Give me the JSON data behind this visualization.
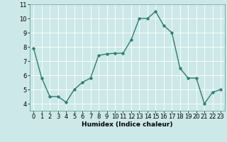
{
  "x": [
    0,
    1,
    2,
    3,
    4,
    5,
    6,
    7,
    8,
    9,
    10,
    11,
    12,
    13,
    14,
    15,
    16,
    17,
    18,
    19,
    20,
    21,
    22,
    23
  ],
  "y": [
    7.9,
    5.8,
    4.5,
    4.5,
    4.1,
    5.0,
    5.5,
    5.8,
    7.4,
    7.5,
    7.55,
    7.55,
    8.5,
    10.0,
    10.0,
    10.5,
    9.5,
    9.0,
    6.5,
    5.8,
    5.8,
    4.0,
    4.8,
    5.0
  ],
  "line_color": "#2e7d6e",
  "marker_color": "#2e7d6e",
  "bg_color": "#cce8e8",
  "grid_color": "#ffffff",
  "xlabel": "Humidex (Indice chaleur)",
  "xlim": [
    -0.5,
    23.5
  ],
  "ylim": [
    3.5,
    11
  ],
  "yticks": [
    4,
    5,
    6,
    7,
    8,
    9,
    10,
    11
  ],
  "xticks": [
    0,
    1,
    2,
    3,
    4,
    5,
    6,
    7,
    8,
    9,
    10,
    11,
    12,
    13,
    14,
    15,
    16,
    17,
    18,
    19,
    20,
    21,
    22,
    23
  ],
  "xlabel_fontsize": 6.5,
  "tick_fontsize": 6,
  "linewidth": 1.0,
  "markersize": 2.5
}
